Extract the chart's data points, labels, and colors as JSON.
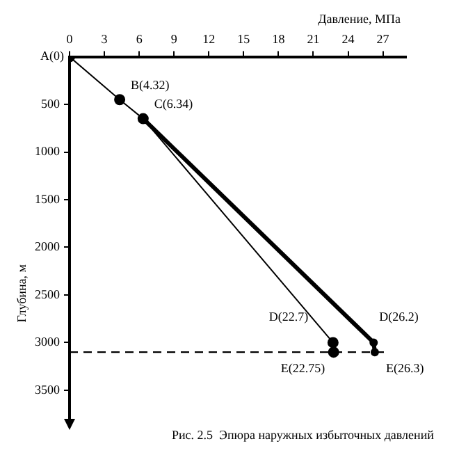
{
  "chart_data": {
    "type": "line",
    "xlabel": "Давление, МПа",
    "ylabel": "Глубина, м",
    "xlim": [
      0,
      29
    ],
    "xticks": [
      0,
      3,
      6,
      9,
      12,
      15,
      18,
      21,
      24,
      27
    ],
    "ylim": [
      3800,
      0
    ],
    "yticks": [
      500,
      1000,
      1500,
      2000,
      2500,
      3000,
      3500
    ],
    "grid": false,
    "legend": false,
    "marker": "circle",
    "series": [
      {
        "color": "#000000",
        "x": [
          0,
          4.32,
          6.34,
          22.7,
          22.75
        ],
        "values": [
          0,
          450,
          650,
          3000,
          3100
        ]
      },
      {
        "color": "#000000",
        "x": [
          6.34,
          26.2,
          26.3
        ],
        "values": [
          650,
          3000,
          3100
        ]
      }
    ],
    "ref_lines": [
      {
        "axis": "y",
        "value": 3100,
        "line_style": "dashed",
        "color": "#000000"
      }
    ],
    "annotations": [
      {
        "text": "A(0)",
        "x": 0,
        "y": 0
      },
      {
        "text": "B(4.32)",
        "x": 4.32,
        "y": 450
      },
      {
        "text": "C(6.34)",
        "x": 6.34,
        "y": 650
      },
      {
        "text": "D(22.7)",
        "x": 22.7,
        "y": 3000
      },
      {
        "text": "E(22.75)",
        "x": 22.75,
        "y": 3100
      },
      {
        "text": "D(26.2)",
        "x": 26.2,
        "y": 3000
      },
      {
        "text": "E(26.3)",
        "x": 26.3,
        "y": 3100
      },
      "Рис. 2.5  Эпюра наружных избыточных давлений"
    ]
  }
}
